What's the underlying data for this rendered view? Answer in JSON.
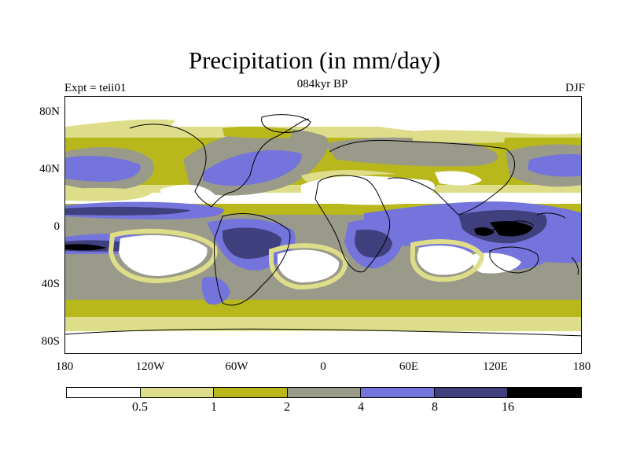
{
  "title": "Precipitation (in mm/day)",
  "experiment": "Expt = teii01",
  "period": "084kyr BP",
  "season": "DJF",
  "y_ticks": [
    "80N",
    "40N",
    "0",
    "40S",
    "80S"
  ],
  "x_ticks": [
    "180",
    "120W",
    "60W",
    "0",
    "60E",
    "120E",
    "180"
  ],
  "colorbar": {
    "levels": [
      "0.5",
      "1",
      "2",
      "4",
      "8",
      "16"
    ],
    "colors": [
      "#ffffff",
      "#dede8a",
      "#b8b81c",
      "#9a9a8a",
      "#7474dc",
      "#40407e",
      "#000000"
    ]
  },
  "colors": {
    "white": "#ffffff",
    "pale_yellow": "#dede8a",
    "olive": "#b8b81c",
    "gray": "#9a9a8a",
    "blue": "#7474dc",
    "navy": "#40407e",
    "black": "#000000"
  }
}
